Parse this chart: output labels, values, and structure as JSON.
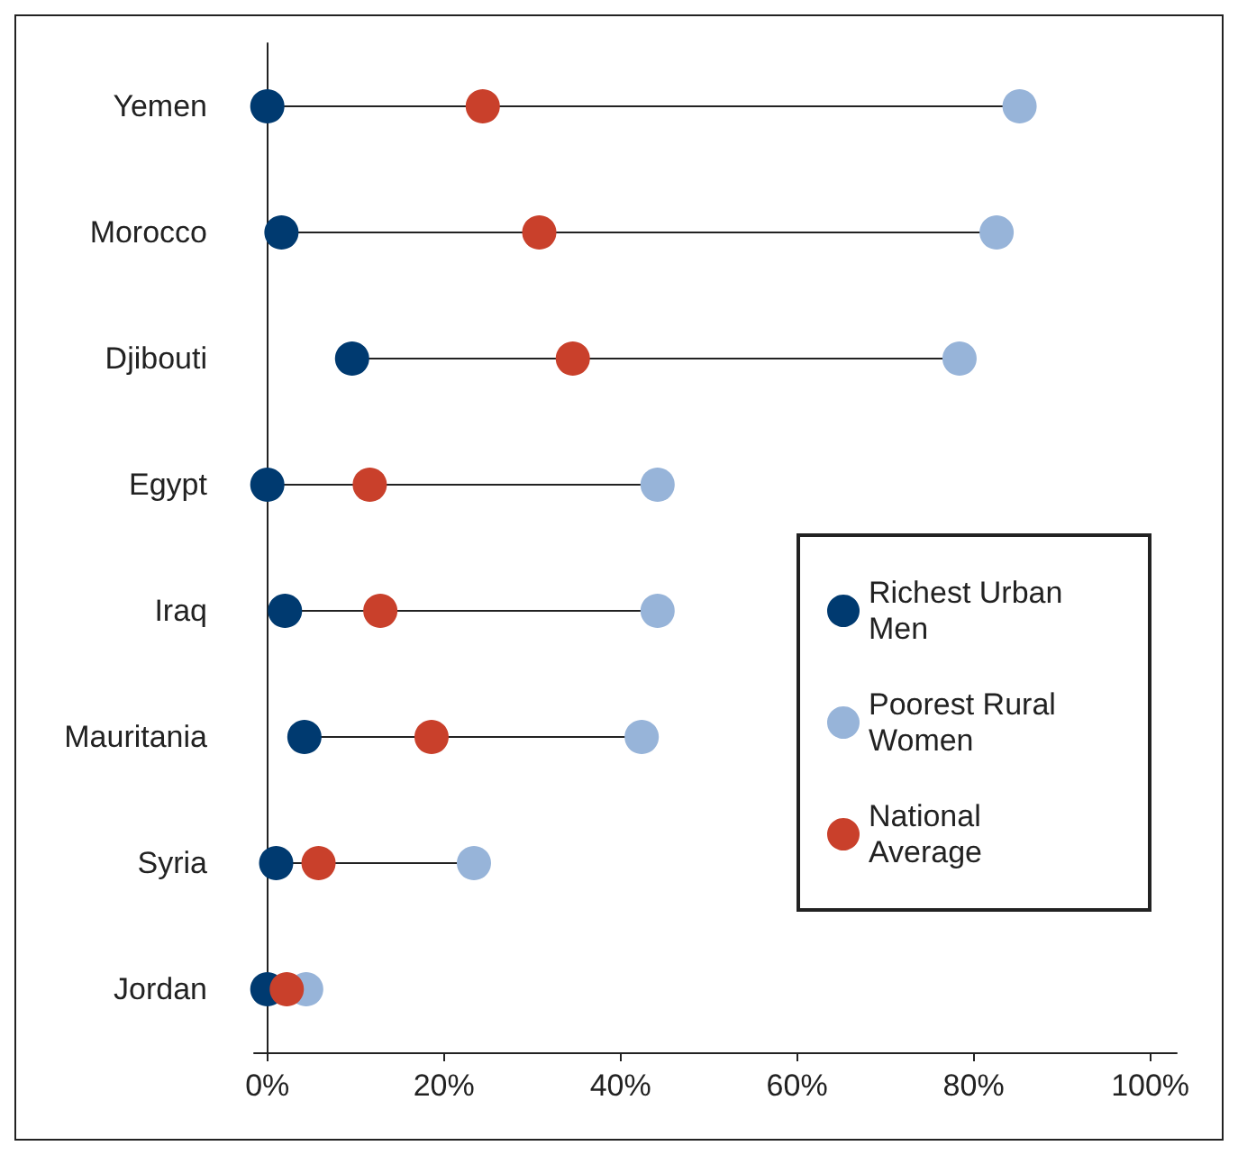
{
  "chart_data": {
    "type": "scatter",
    "orientation": "horizontal",
    "categories": [
      "Yemen",
      "Morocco",
      "Djibouti",
      "Egypt",
      "Iraq",
      "Mauritania",
      "Syria",
      "Jordan"
    ],
    "series": [
      {
        "name": "Richest Urban Men",
        "color": "#003a70",
        "values": [
          0,
          1.6,
          9.6,
          0,
          2,
          4.2,
          1,
          0
        ]
      },
      {
        "name": "Poorest Rural Women",
        "color": "#97b4d9",
        "values": [
          85.2,
          82.6,
          78.4,
          44.2,
          44.2,
          42.4,
          23.4,
          4.4
        ]
      },
      {
        "name": "National Average",
        "color": "#c9402b",
        "values": [
          24.4,
          30.8,
          34.6,
          11.6,
          12.8,
          18.6,
          5.8,
          2.2
        ]
      }
    ],
    "xlim": [
      -1.5,
      103
    ],
    "xticks": [
      {
        "value": 0,
        "label": "0%"
      },
      {
        "value": 20,
        "label": "20%"
      },
      {
        "value": 40,
        "label": "40%"
      },
      {
        "value": 60,
        "label": "60%"
      },
      {
        "value": 80,
        "label": "80%"
      },
      {
        "value": 100,
        "label": "100%"
      }
    ],
    "grid": false,
    "legend": "right",
    "marker": "circle"
  }
}
